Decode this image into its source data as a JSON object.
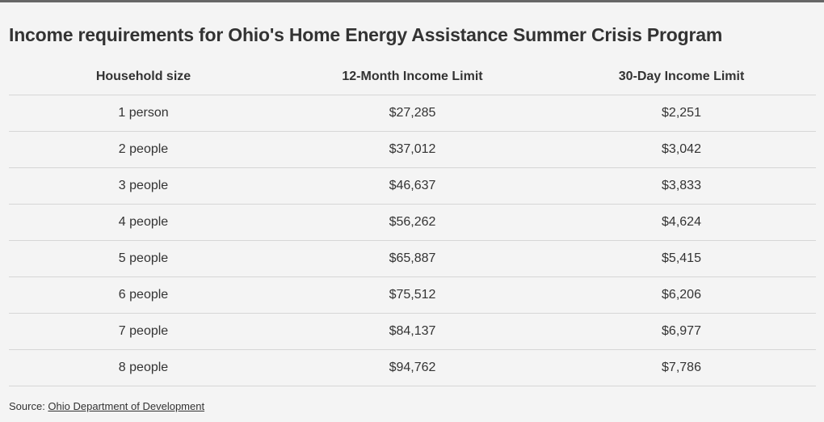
{
  "title": "Income requirements for Ohio's Home Energy Assistance Summer Crisis Program",
  "chart_data": {
    "type": "table",
    "title": "Income requirements for Ohio's Home Energy Assistance Summer Crisis Program",
    "columns": [
      "Household size",
      "12-Month Income Limit",
      "30-Day Income Limit"
    ],
    "rows": [
      [
        "1 person",
        "$27,285",
        "$2,251"
      ],
      [
        "2 people",
        "$37,012",
        "$3,042"
      ],
      [
        "3 people",
        "$46,637",
        "$3,833"
      ],
      [
        "4 people",
        "$56,262",
        "$4,624"
      ],
      [
        "5 people",
        "$65,887",
        "$5,415"
      ],
      [
        "6 people",
        "$75,512",
        "$6,206"
      ],
      [
        "7 people",
        "$84,137",
        "$6,977"
      ],
      [
        "8 people",
        "$94,762",
        "$7,786"
      ]
    ]
  },
  "source": {
    "prefix": "Source: ",
    "link_text": "Ohio Department of Development"
  },
  "colors": {
    "background": "#f4f4f4",
    "text": "#333333",
    "divider": "#d6d6d6",
    "top_rule": "#666666"
  }
}
